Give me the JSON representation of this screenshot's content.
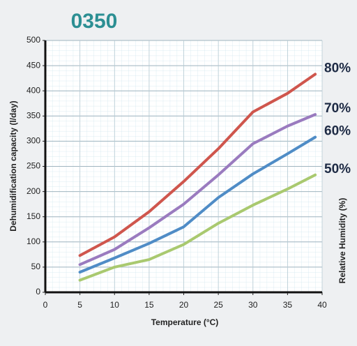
{
  "chart_data": {
    "type": "line",
    "title": "0350",
    "x_label": "Temperature (°C)",
    "y_label": "Dehumidification capacity (l/day)",
    "legend_title": "Relative Humidity (%)",
    "x": [
      5,
      10,
      15,
      20,
      25,
      30,
      35,
      39
    ],
    "series": [
      {
        "name": "80%",
        "color": "#cf564d",
        "values": [
          73,
          110,
          160,
          220,
          285,
          358,
          395,
          433
        ]
      },
      {
        "name": "70%",
        "color": "#9a7bbf",
        "values": [
          55,
          85,
          128,
          175,
          233,
          295,
          330,
          353
        ]
      },
      {
        "name": "60%",
        "color": "#4f8cc6",
        "values": [
          40,
          68,
          97,
          130,
          188,
          235,
          275,
          308
        ]
      },
      {
        "name": "50%",
        "color": "#a9c96f",
        "values": [
          24,
          50,
          65,
          95,
          137,
          173,
          205,
          233
        ]
      }
    ],
    "xlim": [
      0,
      40
    ],
    "xticks": [
      0,
      5,
      10,
      15,
      20,
      25,
      30,
      35,
      40
    ],
    "ylim": [
      0,
      500
    ],
    "yticks": [
      0,
      50,
      100,
      150,
      200,
      250,
      300,
      350,
      400,
      450,
      500
    ],
    "grid": true
  }
}
